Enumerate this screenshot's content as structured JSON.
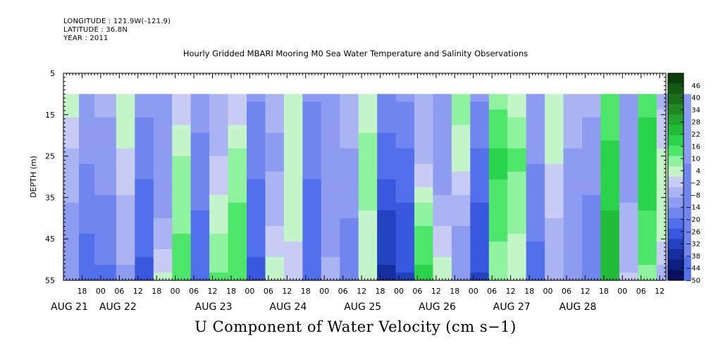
{
  "header": {
    "longitude": "LONGITUDE : 121.9W(-121.9)",
    "latitude": "LATITUDE : 36.8N",
    "year": "YEAR : 2011"
  },
  "chart_data": {
    "type": "heatmap",
    "title": "Hourly Gridded MBARI Mooring M0 Sea Water Temperature and Salinity Observations",
    "xlabel": "U Component of Water Velocity (cm s−1)",
    "ylabel": "DEPTH (m)",
    "ylim": [
      55,
      5
    ],
    "y_ticks": [
      "5",
      "15",
      "25",
      "35",
      "45",
      "55"
    ],
    "x_hour_ticks": [
      "18",
      "00",
      "06",
      "12",
      "18",
      "00",
      "06",
      "12",
      "18",
      "00",
      "06",
      "12",
      "18",
      "00",
      "06",
      "12",
      "18",
      "00",
      "06",
      "12",
      "18",
      "00",
      "06",
      "12",
      "18",
      "00",
      "06",
      "12",
      "18",
      "00",
      "06",
      "12"
    ],
    "x_date_labels": [
      "AUG 21",
      "AUG 22",
      "AUG 23",
      "AUG 24",
      "AUG 25",
      "AUG 26",
      "AUG 27",
      "AUG 28"
    ],
    "x_range_hours_from_aug21_00": [
      12,
      206
    ],
    "data_extent": {
      "depth_top": 10,
      "depth_bottom": 55,
      "start": "AUG 21 00",
      "end": "AUG 28 ~22"
    },
    "colorbar": {
      "ticks": [
        "46",
        "40",
        "34",
        "28",
        "22",
        "16",
        "10",
        "4",
        "−2",
        "−8",
        "−14",
        "−20",
        "−26",
        "−32",
        "−38",
        "−44",
        "−50"
      ],
      "range": [
        -50,
        52
      ],
      "colors_high_to_low": [
        "#0b3f0b",
        "#145a14",
        "#1b6f1b",
        "#1f8a24",
        "#22a32d",
        "#22bd38",
        "#2ad44a",
        "#4ee66a",
        "#8ff29e",
        "#c3f5c8",
        "#c8ccf4",
        "#aab4f3",
        "#8d9cf0",
        "#7086ee",
        "#5270ec",
        "#3858e0",
        "#2342c0",
        "#172ea0",
        "#0e1d80",
        "#080f5c"
      ]
    },
    "colors": {
      "blue_mid": "#8fa0f0",
      "blue_strong": "#4d6ef0",
      "green_mid": "#9ef2a4",
      "green_strong": "#2ee05a"
    },
    "columns": [
      {
        "start_hr": 0,
        "end_hr": 5,
        "values_top_to_bottom": [
          4,
          -6,
          -10,
          -14
        ]
      },
      {
        "start_hr": 5,
        "end_hr": 10,
        "values_top_to_bottom": [
          -10,
          -14,
          -18,
          -24
        ]
      },
      {
        "start_hr": 10,
        "end_hr": 17,
        "values_top_to_bottom": [
          -8,
          -12,
          -16,
          -20
        ]
      },
      {
        "start_hr": 17,
        "end_hr": 23,
        "values_top_to_bottom": [
          6,
          0,
          -6,
          -10
        ]
      },
      {
        "start_hr": 23,
        "end_hr": 29,
        "values_top_to_bottom": [
          -12,
          -18,
          -22,
          -26
        ]
      },
      {
        "start_hr": 29,
        "end_hr": 35,
        "values_top_to_bottom": [
          -10,
          -12,
          -10,
          2
        ]
      },
      {
        "start_hr": 35,
        "end_hr": 41,
        "values_top_to_bottom": [
          -4,
          6,
          10,
          14
        ]
      },
      {
        "start_hr": 41,
        "end_hr": 47,
        "values_top_to_bottom": [
          -12,
          -16,
          -20,
          -24
        ]
      },
      {
        "start_hr": 47,
        "end_hr": 53,
        "values_top_to_bottom": [
          -8,
          -4,
          4,
          12
        ]
      },
      {
        "start_hr": 53,
        "end_hr": 59,
        "values_top_to_bottom": [
          -4,
          8,
          12,
          14
        ]
      },
      {
        "start_hr": 59,
        "end_hr": 65,
        "values_top_to_bottom": [
          -14,
          -18,
          -22,
          -26
        ]
      },
      {
        "start_hr": 65,
        "end_hr": 71,
        "values_top_to_bottom": [
          -8,
          -10,
          -6,
          4
        ]
      },
      {
        "start_hr": 71,
        "end_hr": 77,
        "values_top_to_bottom": [
          2,
          6,
          4,
          -4
        ]
      },
      {
        "start_hr": 77,
        "end_hr": 83,
        "values_top_to_bottom": [
          -14,
          -18,
          -22,
          -24
        ]
      },
      {
        "start_hr": 83,
        "end_hr": 89,
        "values_top_to_bottom": [
          -10,
          -14,
          -12,
          -8
        ]
      },
      {
        "start_hr": 89,
        "end_hr": 95,
        "values_top_to_bottom": [
          -6,
          -10,
          -14,
          -18
        ]
      },
      {
        "start_hr": 95,
        "end_hr": 101,
        "values_top_to_bottom": [
          4,
          8,
          6,
          2
        ]
      },
      {
        "start_hr": 101,
        "end_hr": 107,
        "values_top_to_bottom": [
          -16,
          -22,
          -30,
          -36
        ]
      },
      {
        "start_hr": 107,
        "end_hr": 113,
        "values_top_to_bottom": [
          -14,
          -20,
          -26,
          -30
        ]
      },
      {
        "start_hr": 113,
        "end_hr": 119,
        "values_top_to_bottom": [
          -8,
          -6,
          10,
          18
        ]
      },
      {
        "start_hr": 119,
        "end_hr": 125,
        "values_top_to_bottom": [
          -10,
          -14,
          -6,
          4
        ]
      },
      {
        "start_hr": 125,
        "end_hr": 131,
        "values_top_to_bottom": [
          8,
          4,
          -8,
          -14
        ]
      },
      {
        "start_hr": 131,
        "end_hr": 137,
        "values_top_to_bottom": [
          -14,
          -20,
          -26,
          -30
        ]
      },
      {
        "start_hr": 137,
        "end_hr": 143,
        "values_top_to_bottom": [
          10,
          18,
          14,
          8
        ]
      },
      {
        "start_hr": 143,
        "end_hr": 149,
        "values_top_to_bottom": [
          4,
          12,
          8,
          2
        ]
      },
      {
        "start_hr": 149,
        "end_hr": 155,
        "values_top_to_bottom": [
          -10,
          -14,
          -18,
          -22
        ]
      },
      {
        "start_hr": 155,
        "end_hr": 161,
        "values_top_to_bottom": [
          6,
          2,
          -4,
          -8
        ]
      },
      {
        "start_hr": 161,
        "end_hr": 167,
        "values_top_to_bottom": [
          -6,
          -10,
          -12,
          -14
        ]
      },
      {
        "start_hr": 167,
        "end_hr": 173,
        "values_top_to_bottom": [
          -8,
          -12,
          -16,
          -18
        ]
      },
      {
        "start_hr": 173,
        "end_hr": 179,
        "values_top_to_bottom": [
          12,
          18,
          22,
          24
        ]
      },
      {
        "start_hr": 179,
        "end_hr": 185,
        "values_top_to_bottom": [
          -10,
          -12,
          -8,
          -4
        ]
      },
      {
        "start_hr": 185,
        "end_hr": 191,
        "values_top_to_bottom": [
          14,
          20,
          16,
          10
        ]
      },
      {
        "start_hr": 191,
        "end_hr": 197,
        "values_top_to_bottom": [
          -6,
          2,
          6,
          -6
        ]
      },
      {
        "start_hr": 197,
        "end_hr": 202,
        "values_top_to_bottom": [
          -10,
          -14,
          -18,
          -20
        ]
      }
    ]
  }
}
